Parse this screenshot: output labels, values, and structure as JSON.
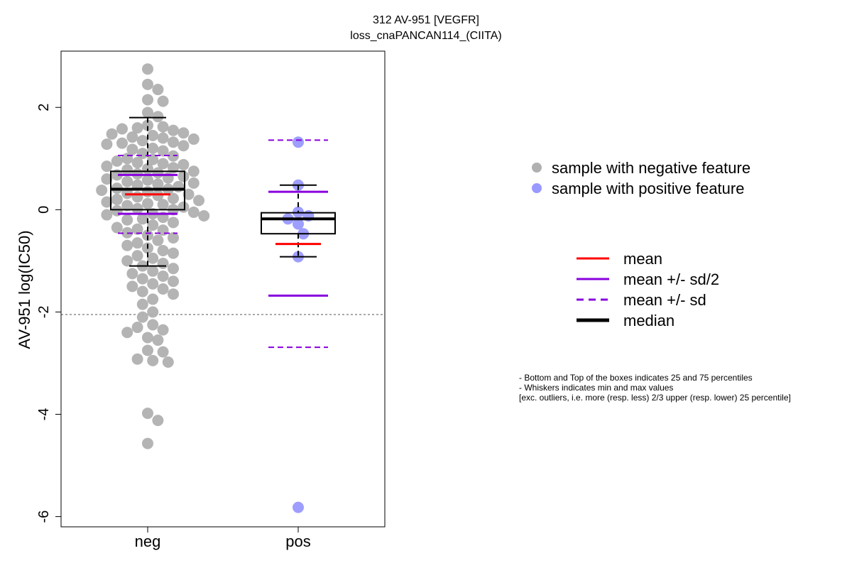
{
  "chart_data": {
    "type": "boxplot-beeswarm",
    "title": "312 AV-951 [VEGFR]",
    "subtitle": "loss_cnaPANCAN114_(CIITA)",
    "xlabel": "",
    "ylabel": "AV-951 log(IC50)",
    "categories": [
      "neg",
      "pos"
    ],
    "ylim": [
      -6.2,
      3.1
    ],
    "yticks": [
      2,
      0,
      -2,
      -4,
      -6
    ],
    "threshold_line": -2.05,
    "groups": [
      {
        "name": "neg",
        "box": {
          "q1": 0.0,
          "median": 0.4,
          "q3": 0.75,
          "whisker_low": -1.1,
          "whisker_high": 1.8
        },
        "mean": 0.3,
        "mean_minus_half_sd": -0.08,
        "mean_plus_half_sd": 0.68,
        "mean_minus_sd": -0.46,
        "mean_plus_sd": 1.06,
        "points": [
          2.75,
          2.45,
          2.35,
          2.15,
          2.12,
          1.9,
          1.82,
          1.65,
          1.62,
          1.6,
          1.58,
          1.55,
          1.5,
          1.48,
          1.45,
          1.42,
          1.4,
          1.38,
          1.35,
          1.32,
          1.3,
          1.28,
          1.25,
          1.2,
          1.18,
          1.15,
          1.1,
          1.05,
          1.0,
          0.98,
          0.95,
          0.92,
          0.9,
          0.88,
          0.85,
          0.82,
          0.8,
          0.78,
          0.75,
          0.72,
          0.7,
          0.68,
          0.65,
          0.62,
          0.6,
          0.58,
          0.55,
          0.52,
          0.5,
          0.48,
          0.45,
          0.42,
          0.4,
          0.38,
          0.35,
          0.32,
          0.3,
          0.28,
          0.25,
          0.22,
          0.2,
          0.18,
          0.15,
          0.12,
          0.1,
          0.08,
          0.05,
          0.02,
          0.0,
          -0.02,
          -0.05,
          -0.08,
          -0.1,
          -0.12,
          -0.15,
          -0.18,
          -0.2,
          -0.25,
          -0.3,
          -0.35,
          -0.38,
          -0.4,
          -0.45,
          -0.5,
          -0.55,
          -0.6,
          -0.65,
          -0.7,
          -0.75,
          -0.8,
          -0.85,
          -0.9,
          -0.95,
          -1.0,
          -1.05,
          -1.1,
          -1.15,
          -1.2,
          -1.25,
          -1.3,
          -1.35,
          -1.4,
          -1.45,
          -1.5,
          -1.55,
          -1.6,
          -1.65,
          -1.75,
          -1.85,
          -2.0,
          -2.1,
          -2.25,
          -2.3,
          -2.35,
          -2.4,
          -2.5,
          -2.55,
          -2.75,
          -2.78,
          -2.92,
          -2.95,
          -2.98,
          -3.98,
          -4.12,
          -4.57
        ],
        "color": "#b0b0b0"
      },
      {
        "name": "pos",
        "box": {
          "q1": -0.47,
          "median": -0.18,
          "q3": -0.06,
          "whisker_low": -0.92,
          "whisker_high": 0.48
        },
        "mean": -0.67,
        "mean_minus_half_sd": -1.68,
        "mean_plus_half_sd": 0.35,
        "mean_minus_sd": -2.69,
        "mean_plus_sd": 1.36,
        "points": [
          1.32,
          0.48,
          -0.05,
          -0.12,
          -0.18,
          -0.28,
          -0.47,
          -0.92,
          -5.82
        ],
        "color": "#9999ff"
      }
    ],
    "legend_points": [
      {
        "label": "sample with negative feature",
        "color": "#b0b0b0"
      },
      {
        "label": "sample with positive feature",
        "color": "#9999ff"
      }
    ],
    "legend_lines": [
      {
        "label": "mean",
        "color": "#ff0000",
        "style": "solid"
      },
      {
        "label": "mean +/- sd/2",
        "color": "#8800dd",
        "style": "solid"
      },
      {
        "label": "mean +/- sd",
        "color": "#8800dd",
        "style": "dashed"
      },
      {
        "label": "median",
        "color": "#000000",
        "style": "thick"
      }
    ],
    "notes": [
      "- Bottom and Top of the boxes indicates 25 and 75 percentiles",
      "- Whiskers indicates min and max values",
      "[exc. outliers, i.e. more (resp. less) 2/3 upper (resp. lower) 25 percentile]"
    ]
  }
}
